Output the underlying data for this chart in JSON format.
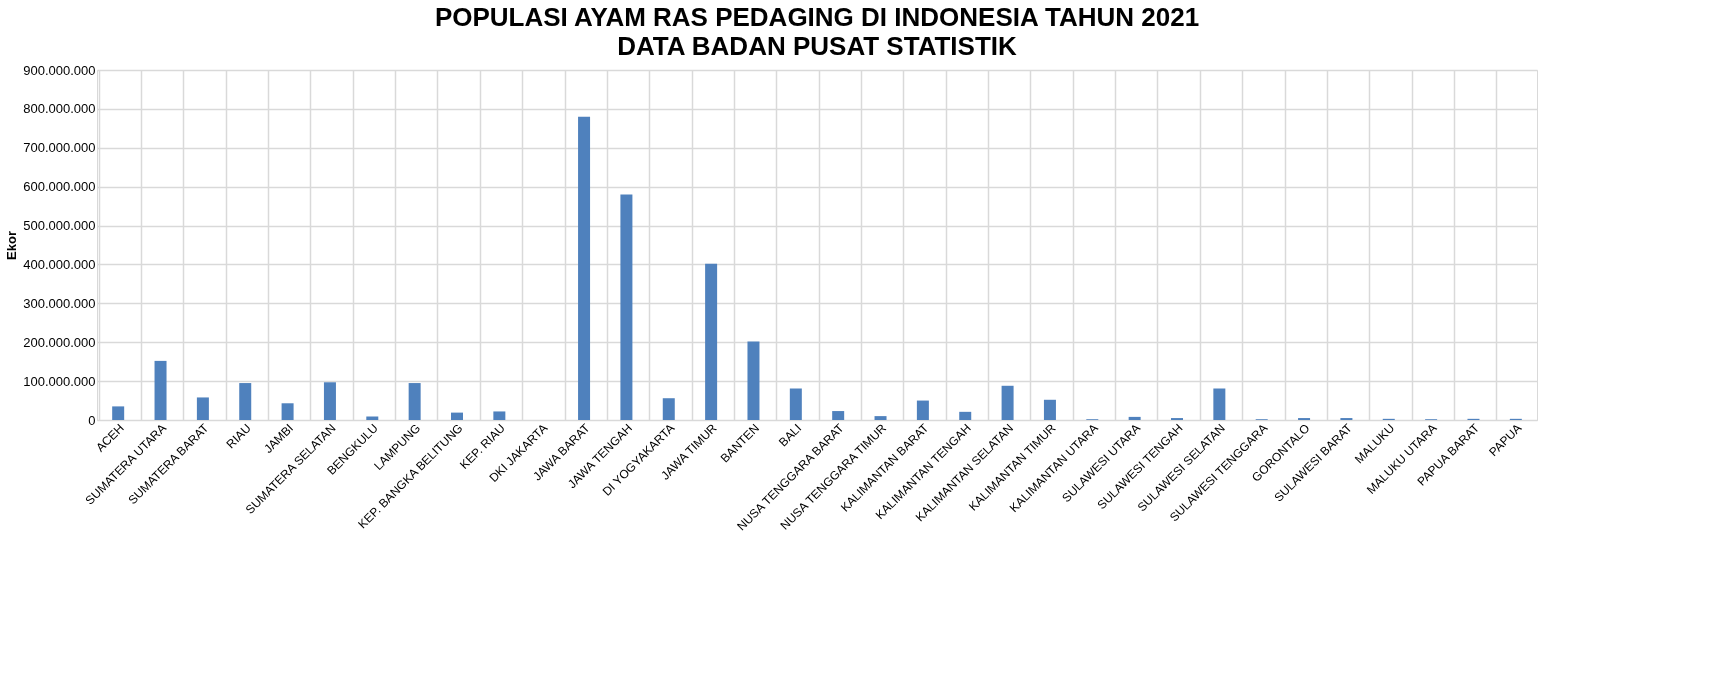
{
  "chart_data": {
    "type": "bar",
    "title": "POPULASI AYAM RAS PEDAGING DI INDONESIA TAHUN 2021",
    "subtitle": "DATA BADAN PUSAT STATISTIK",
    "ylabel": "Ekor",
    "categories": [
      "ACEH",
      "SUMATERA UTARA",
      "SUMATERA BARAT",
      "RIAU",
      "JAMBI",
      "SUMATERA SELATAN",
      "BENGKULU",
      "LAMPUNG",
      "KEP. BANGKA BELITUNG",
      "KEP. RIAU",
      "DKI JAKARTA",
      "JAWA BARAT",
      "JAWA TENGAH",
      "DI YOGYAKARTA",
      "JAWA TIMUR",
      "BANTEN",
      "BALI",
      "NUSA TENGGARA BARAT",
      "NUSA TENGGARA TIMUR",
      "KALIMANTAN BARAT",
      "KALIMANTAN TENGAH",
      "KALIMANTAN SELATAN",
      "KALIMANTAN TIMUR",
      "KALIMANTAN UTARA",
      "SULAWESI UTARA",
      "SULAWESI TENGAH",
      "SULAWESI SELATAN",
      "SULAWESI TENGGARA",
      "GORONTALO",
      "SULAWESI BARAT",
      "MALUKU",
      "MALUKU UTARA",
      "PAPUA BARAT",
      "PAPUA"
    ],
    "values": [
      35000000,
      152000000,
      58000000,
      95000000,
      43000000,
      97000000,
      9000000,
      95000000,
      19000000,
      22000000,
      0,
      780000000,
      580000000,
      56000000,
      402000000,
      202000000,
      81000000,
      23000000,
      10000000,
      50000000,
      21000000,
      88000000,
      52000000,
      2000000,
      8000000,
      5000000,
      81000000,
      2000000,
      5000000,
      5000000,
      3000000,
      2000000,
      3000000,
      3000000
    ],
    "color": "#4f81bd",
    "ylim": [
      0,
      900000000
    ],
    "yticks": [
      {
        "value": 0,
        "label": "0"
      },
      {
        "value": 100000000,
        "label": "100.000.000"
      },
      {
        "value": 200000000,
        "label": "200.000.000"
      },
      {
        "value": 300000000,
        "label": "300.000.000"
      },
      {
        "value": 400000000,
        "label": "400.000.000"
      },
      {
        "value": 500000000,
        "label": "500.000.000"
      },
      {
        "value": 600000000,
        "label": "600.000.000"
      },
      {
        "value": 700000000,
        "label": "700.000.000"
      },
      {
        "value": 800000000,
        "label": "800.000.000"
      },
      {
        "value": 900000000,
        "label": "900.000.000"
      }
    ],
    "grid": true
  }
}
